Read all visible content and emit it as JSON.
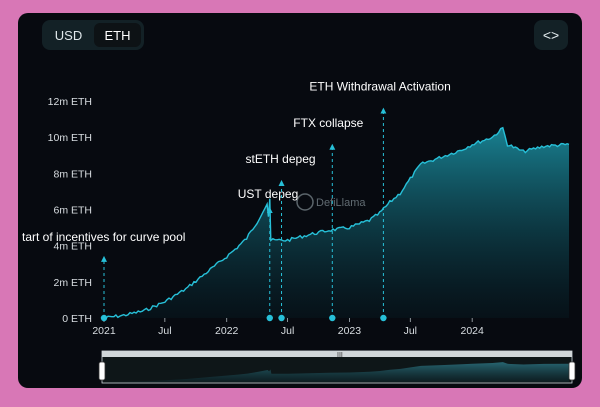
{
  "toggle": {
    "usd_label": "USD",
    "eth_label": "ETH",
    "active": "ETH"
  },
  "embed": {
    "icon": "code-icon",
    "label": "<>"
  },
  "watermark": {
    "text": "DefiLlama"
  },
  "colors": {
    "line": "#27c0d8",
    "background": "#070a10",
    "page": "#d877b6"
  },
  "chart_data": {
    "type": "area",
    "title": "",
    "xlabel": "",
    "ylabel": "",
    "x_range": [
      "2021-01-01",
      "2024-10-15"
    ],
    "ylim": [
      0,
      12
    ],
    "y_unit": "m ETH",
    "y_ticks": [
      "0 ETH",
      "2m ETH",
      "4m ETH",
      "6m ETH",
      "8m ETH",
      "10m ETH",
      "12m ETH"
    ],
    "x_ticks": [
      "2021",
      "Jul",
      "2022",
      "Jul",
      "2023",
      "Jul",
      "2024"
    ],
    "grid": false,
    "series": [
      {
        "values": [
          [
            "2021-01-01",
            0.0
          ],
          [
            "2021-03-01",
            0.15
          ],
          [
            "2021-05-01",
            0.4
          ],
          [
            "2021-07-01",
            0.9
          ],
          [
            "2021-09-01",
            1.6
          ],
          [
            "2021-11-01",
            2.5
          ],
          [
            "2022-01-01",
            3.4
          ],
          [
            "2022-02-01",
            3.9
          ],
          [
            "2022-03-01",
            4.4
          ],
          [
            "2022-04-01",
            5.3
          ],
          [
            "2022-05-01",
            6.3
          ],
          [
            "2022-05-05",
            5.6
          ],
          [
            "2022-05-09",
            6.6
          ],
          [
            "2022-05-12",
            4.3
          ],
          [
            "2022-07-01",
            4.3
          ],
          [
            "2022-09-01",
            4.6
          ],
          [
            "2022-11-01",
            4.85
          ],
          [
            "2023-01-01",
            5.0
          ],
          [
            "2023-03-01",
            5.4
          ],
          [
            "2023-04-01",
            5.8
          ],
          [
            "2023-05-01",
            6.4
          ],
          [
            "2023-06-01",
            6.9
          ],
          [
            "2023-07-01",
            7.7
          ],
          [
            "2023-08-01",
            8.5
          ],
          [
            "2023-10-01",
            8.9
          ],
          [
            "2023-12-01",
            9.3
          ],
          [
            "2024-01-01",
            9.6
          ],
          [
            "2024-03-01",
            10.0
          ],
          [
            "2024-04-01",
            10.5
          ],
          [
            "2024-04-15",
            9.6
          ],
          [
            "2024-06-01",
            9.2
          ],
          [
            "2024-08-01",
            9.5
          ],
          [
            "2024-10-15",
            9.6
          ]
        ]
      }
    ],
    "annotations": [
      {
        "date": "2021-01-01",
        "label": "tart of incentives for curve pool",
        "line_top": 3.6
      },
      {
        "date": "2022-05-09",
        "label": "UST depeg",
        "line_top": 6.3
      },
      {
        "date": "2022-06-13",
        "label": "stETH depeg",
        "line_top": 7.8
      },
      {
        "date": "2022-11-11",
        "label": "FTX collapse",
        "line_top": 9.8
      },
      {
        "date": "2023-04-12",
        "label": "ETH Withdrawal Activation",
        "line_top": 11.8
      }
    ]
  }
}
